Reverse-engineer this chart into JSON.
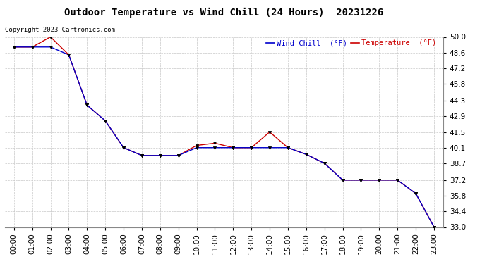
{
  "title": "Outdoor Temperature vs Wind Chill (24 Hours)  20231226",
  "copyright_text": "Copyright 2023 Cartronics.com",
  "legend_wind_chill": "Wind Chill  (°F)",
  "legend_temperature": "Temperature  (°F)",
  "x_labels": [
    "00:00",
    "01:00",
    "02:00",
    "03:00",
    "04:00",
    "05:00",
    "06:00",
    "07:00",
    "08:00",
    "09:00",
    "10:00",
    "11:00",
    "12:00",
    "13:00",
    "14:00",
    "15:00",
    "16:00",
    "17:00",
    "18:00",
    "19:00",
    "20:00",
    "21:00",
    "22:00",
    "23:00"
  ],
  "temperature": [
    49.1,
    49.1,
    50.0,
    48.4,
    43.9,
    42.5,
    40.1,
    39.4,
    39.4,
    39.4,
    40.3,
    40.5,
    40.1,
    40.1,
    41.5,
    40.1,
    39.5,
    38.7,
    37.2,
    37.2,
    37.2,
    37.2,
    36.0,
    33.0
  ],
  "wind_chill": [
    49.1,
    49.1,
    49.1,
    48.4,
    43.9,
    42.5,
    40.1,
    39.4,
    39.4,
    39.4,
    40.1,
    40.1,
    40.1,
    40.1,
    40.1,
    40.1,
    39.5,
    38.7,
    37.2,
    37.2,
    37.2,
    37.2,
    36.0,
    33.0
  ],
  "ylim": [
    33.0,
    50.0
  ],
  "yticks": [
    33.0,
    34.4,
    35.8,
    37.2,
    38.7,
    40.1,
    41.5,
    42.9,
    44.3,
    45.8,
    47.2,
    48.6,
    50.0
  ],
  "background_color": "#ffffff",
  "grid_color": "#c8c8c8",
  "temp_color": "#cc0000",
  "wind_color": "#0000cc",
  "marker_color": "#000000",
  "title_fontsize": 10,
  "axis_fontsize": 7.5,
  "legend_fontsize": 7.5,
  "copyright_fontsize": 6.5
}
